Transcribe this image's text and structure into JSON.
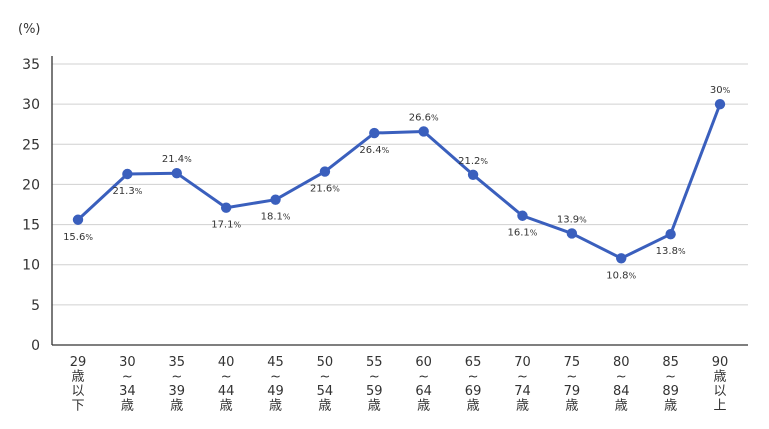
{
  "chart_data": {
    "type": "line",
    "ylabel": "(%)",
    "ylim": [
      0,
      35
    ],
    "yticks": [
      "0",
      "5",
      "10",
      "15",
      "20",
      "25",
      "30",
      "35"
    ],
    "grid": true,
    "categories": [
      [
        "29",
        "歳",
        "以",
        "下"
      ],
      [
        "30",
        "~",
        "34",
        "歳"
      ],
      [
        "35",
        "~",
        "39",
        "歳"
      ],
      [
        "40",
        "~",
        "44",
        "歳"
      ],
      [
        "45",
        "~",
        "49",
        "歳"
      ],
      [
        "50",
        "~",
        "54",
        "歳"
      ],
      [
        "55",
        "~",
        "59",
        "歳"
      ],
      [
        "60",
        "~",
        "64",
        "歳"
      ],
      [
        "65",
        "~",
        "69",
        "歳"
      ],
      [
        "70",
        "~",
        "74",
        "歳"
      ],
      [
        "75",
        "~",
        "79",
        "歳"
      ],
      [
        "80",
        "~",
        "84",
        "歳"
      ],
      [
        "85",
        "~",
        "89",
        "歳"
      ],
      [
        "90",
        "歳",
        "以",
        "上"
      ]
    ],
    "series": [
      {
        "values": [
          15.6,
          21.3,
          21.4,
          17.1,
          18.1,
          21.6,
          26.4,
          26.6,
          21.2,
          16.1,
          13.9,
          10.8,
          13.8,
          30
        ],
        "labels": [
          "15.6",
          "21.3",
          "21.4",
          "17.1",
          "18.1",
          "21.6",
          "26.4",
          "26.6",
          "21.2",
          "16.1",
          "13.9",
          "10.8",
          "13.8",
          "30"
        ],
        "label_suffix": "%",
        "color": "#3a5fbd"
      }
    ]
  }
}
